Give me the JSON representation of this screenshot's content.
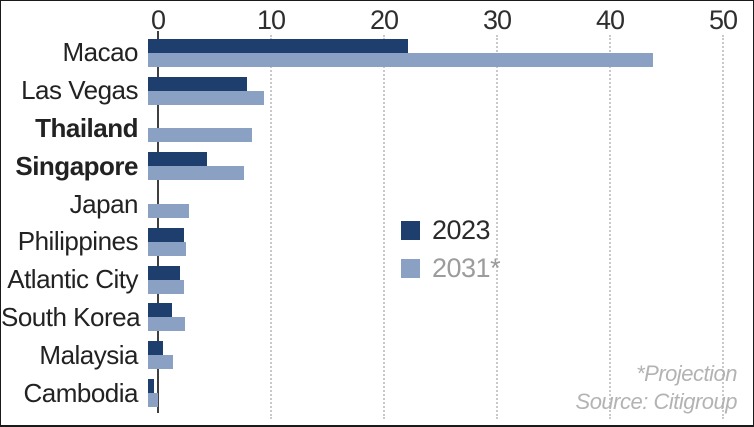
{
  "chart_data": {
    "type": "bar",
    "orientation": "horizontal",
    "title": "",
    "xlabel": "",
    "ylabel": "",
    "xlim": [
      0,
      50
    ],
    "x_ticks": [
      0,
      10,
      20,
      30,
      40,
      50
    ],
    "grid": "vertical-dotted",
    "categories": [
      "Macao",
      "Las Vegas",
      "Thailand",
      "Singapore",
      "Japan",
      "Philippines",
      "Atlantic City",
      "South Korea",
      "Malaysia",
      "Cambodia"
    ],
    "bold_categories": [
      "Thailand",
      "Singapore"
    ],
    "series": [
      {
        "name": "2023",
        "color": "#1e3e6e",
        "values": [
          23.0,
          8.8,
          0,
          5.2,
          0,
          3.2,
          2.8,
          2.1,
          1.3,
          0.5
        ]
      },
      {
        "name": "2031*",
        "color": "#8ba1c4",
        "values": [
          44.7,
          10.3,
          9.2,
          8.5,
          3.6,
          3.4,
          3.2,
          3.3,
          2.2,
          0.9
        ]
      }
    ],
    "legend_position": "middle-right"
  },
  "legend": {
    "items": [
      {
        "label": "2023",
        "color": "#1e3e6e",
        "muted": false
      },
      {
        "label": "2031*",
        "color": "#8ba1c4",
        "muted": true
      }
    ]
  },
  "footer": {
    "projection_note": "*Projection",
    "source": "Source: Citigroup"
  },
  "colors": {
    "bar_2023": "#1e3e6e",
    "bar_2031": "#8ba1c4",
    "axis": "#3f3f3f",
    "gridline": "#c9c9c9",
    "tick_text": "#2e2e2e",
    "label_text": "#222222",
    "muted_text": "#9c9c9c",
    "footer_text": "#b3b3b3",
    "border": "#1a1a1a",
    "background": "#ffffff"
  }
}
